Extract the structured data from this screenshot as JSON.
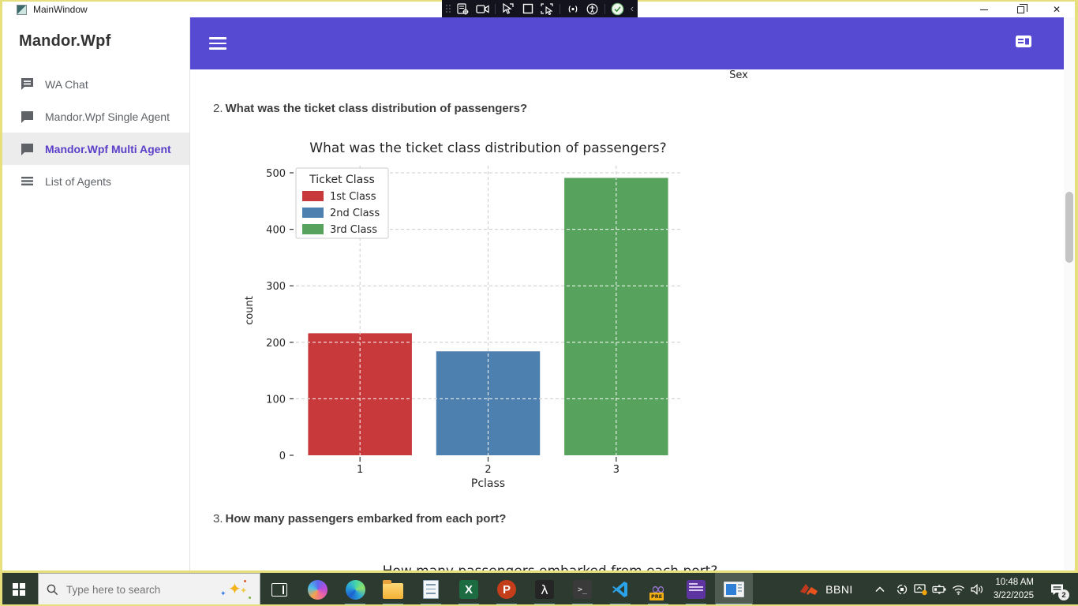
{
  "window": {
    "title": "MainWindow",
    "controls": [
      "minimize",
      "restore",
      "close"
    ]
  },
  "recorder_toolbar": {
    "icons": [
      "drag-handle",
      "steps-settings",
      "camera",
      "cursor-select",
      "region-select",
      "cursor-region",
      "broadcast",
      "accessibility",
      "record-check",
      "collapse-chevron"
    ],
    "collapse_glyph": "‹"
  },
  "sidebar": {
    "title": "Mandor.Wpf",
    "items": [
      {
        "label": "WA Chat",
        "icon": "chat-lines-icon",
        "selected": false
      },
      {
        "label": "Mandor.Wpf Single Agent",
        "icon": "chat-bubble-icon",
        "selected": false
      },
      {
        "label": "Mandor.Wpf Multi Agent",
        "icon": "chat-bubble-icon",
        "selected": true
      },
      {
        "label": "List of Agents",
        "icon": "list-icon",
        "selected": false
      }
    ]
  },
  "appbar": {
    "color": "#5649d2",
    "icons": [
      "menu-icon",
      "panel-layout-icon"
    ]
  },
  "content": {
    "previous_chart_xlabel": "Sex",
    "questions": [
      {
        "number": "2.",
        "text": "What was the ticket class distribution of passengers?"
      },
      {
        "number": "3.",
        "text": "How many passengers embarked from each port?"
      }
    ],
    "next_chart_title_partial": "How many passengers embarked from each port?"
  },
  "chart_data": {
    "type": "bar",
    "title": "What was the ticket class distribution of passengers?",
    "xlabel": "Pclass",
    "ylabel": "count",
    "categories": [
      "1",
      "2",
      "3"
    ],
    "values": [
      216,
      184,
      491
    ],
    "bar_colors": [
      "#c8393b",
      "#4d80ae",
      "#57a25c"
    ],
    "legend": {
      "title": "Ticket Class",
      "position": "upper left",
      "entries": [
        {
          "label": "1st Class",
          "color": "#c8393b"
        },
        {
          "label": "2nd Class",
          "color": "#4d80ae"
        },
        {
          "label": "3rd Class",
          "color": "#57a25c"
        }
      ]
    },
    "ylim": [
      0,
      500
    ],
    "yticks": [
      0,
      100,
      200,
      300,
      400,
      500
    ],
    "grid": "dashed"
  },
  "taskbar": {
    "search": {
      "placeholder": "Type here to search",
      "icon": "search-icon",
      "sparkle_icon": "search-highlights-icon"
    },
    "apps": [
      "start-button",
      "task-view",
      "copilot",
      "edge",
      "file-explorer",
      "notepad",
      "excel",
      "powerpoint",
      "lambda-app",
      "terminal",
      "vscode",
      "visual-studio",
      "purple-terminal",
      "mainwindow-app"
    ],
    "visual_studio_badge": "PRE",
    "visual_studio_glyph": "∞",
    "excel_glyph": "X",
    "powerpoint_glyph": "P",
    "lambda_glyph": "λ",
    "terminal_glyph": ">_",
    "tray": {
      "brand": "BBNI",
      "icons": [
        "hidden-icons-chevron",
        "device-icon",
        "display-update-icon",
        "battery-icon",
        "wifi-icon",
        "volume-icon"
      ],
      "time": "10:48 AM",
      "date": "3/22/2025",
      "notification_badge": "2"
    }
  }
}
